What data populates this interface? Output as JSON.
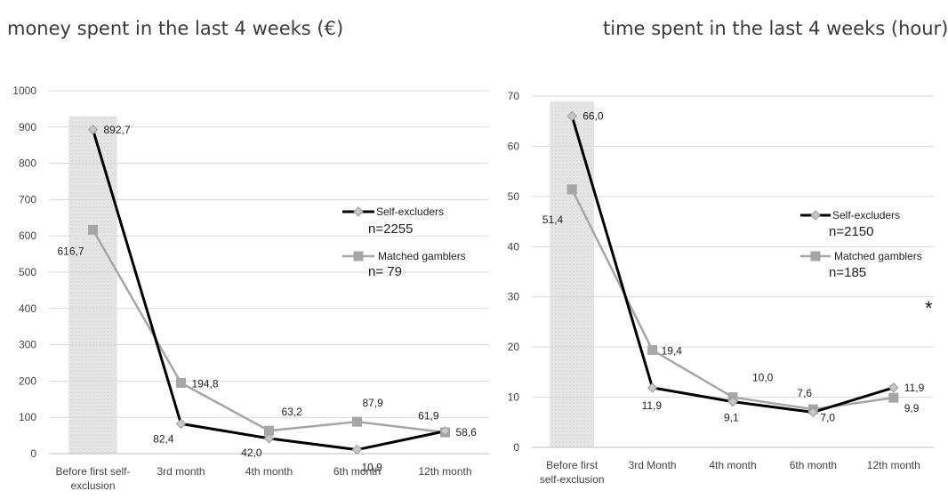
{
  "titles": {
    "left": "money spent in the last 4 weeks (€)",
    "right": "time spent in the last 4 weeks (hour)"
  },
  "chart_data": [
    {
      "type": "line",
      "title": "money spent in the last 4 weeks (€)",
      "categories": [
        [
          "Before first self-",
          "exclusion"
        ],
        [
          "3rd month"
        ],
        [
          "4th month"
        ],
        [
          "6th month"
        ],
        [
          "12th month"
        ]
      ],
      "ylim": [
        0,
        1000
      ],
      "yticks": [
        0,
        100,
        200,
        300,
        400,
        500,
        600,
        700,
        800,
        900,
        1000
      ],
      "grid": true,
      "highlight_category": 0,
      "series": [
        {
          "name": "Self-excluders",
          "values": [
            892.7,
            82.4,
            42.0,
            10.9,
            61.9
          ],
          "labels": [
            "892,7",
            "82,4",
            "42,0",
            "10,9",
            "61,9"
          ],
          "color": "#000000",
          "marker": "diamond"
        },
        {
          "name": "Matched gamblers",
          "values": [
            616.7,
            194.8,
            63.2,
            87.9,
            58.6
          ],
          "labels": [
            "616,7",
            "194,8",
            "63,2",
            "87,9",
            "58,6"
          ],
          "color": "#a6a6a6",
          "marker": "square"
        }
      ],
      "legend_n": [
        "n=2255",
        "n= 79"
      ],
      "annotation": ""
    },
    {
      "type": "line",
      "title": "time spent in the last 4 weeks (hour)",
      "categories": [
        [
          "Before first",
          "self-exclusion"
        ],
        [
          "3rd Month"
        ],
        [
          "4th month"
        ],
        [
          "6th month"
        ],
        [
          "12th month"
        ]
      ],
      "ylim": [
        0,
        70
      ],
      "yticks": [
        0,
        10,
        20,
        30,
        40,
        50,
        60,
        70
      ],
      "grid": true,
      "highlight_category": 0,
      "series": [
        {
          "name": "Self-excluders",
          "values": [
            66.0,
            11.9,
            9.1,
            7.0,
            11.9
          ],
          "labels": [
            "66,0",
            "11,9",
            "9,1",
            "7,0",
            "11,9"
          ],
          "color": "#000000",
          "marker": "diamond"
        },
        {
          "name": "Matched gamblers",
          "values": [
            51.4,
            19.4,
            10.0,
            7.6,
            9.9
          ],
          "labels": [
            "51,4",
            "19,4",
            "10,0",
            "7,6",
            "9,9"
          ],
          "color": "#a6a6a6",
          "marker": "square"
        }
      ],
      "legend_n": [
        "n=2150",
        "n=185"
      ],
      "annotation": "*"
    }
  ]
}
